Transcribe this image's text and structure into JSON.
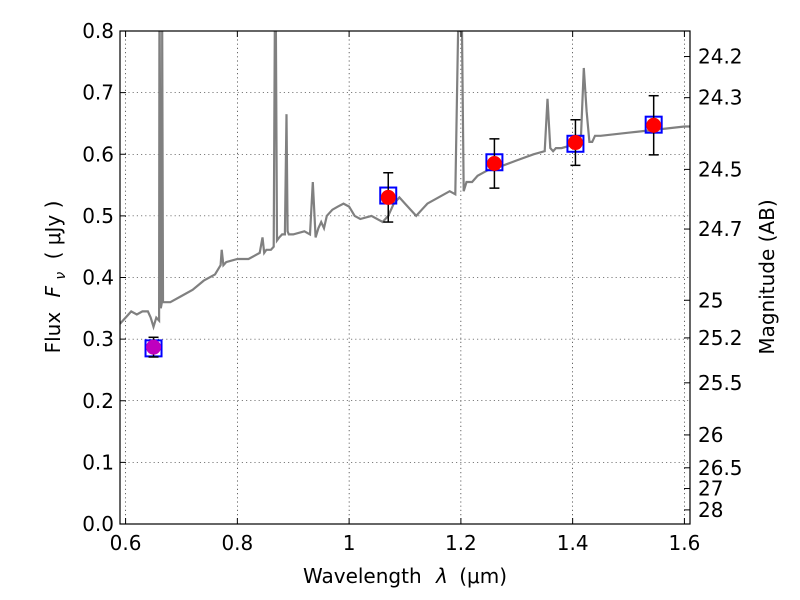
{
  "chart_data": {
    "type": "scatter",
    "xlabel": "Wavelength",
    "xlabel_symbol": "λ",
    "xlabel_unit": "(μm)",
    "ylabel": "Flux",
    "ylabel_symbol": "F",
    "ylabel_subscript": "ν",
    "ylabel_unit": "( μJy )",
    "y2label": "Magnitude (AB)",
    "xlim": [
      0.59,
      1.61
    ],
    "ylim": [
      0.0,
      0.8
    ],
    "xticks": [
      0.6,
      0.8,
      1.0,
      1.2,
      1.4,
      1.6
    ],
    "xtick_labels": [
      "0.6",
      "0.8",
      "1",
      "1.2",
      "1.4",
      "1.6"
    ],
    "yticks": [
      0.0,
      0.1,
      0.2,
      0.3,
      0.4,
      0.5,
      0.6,
      0.7,
      0.8
    ],
    "ytick_labels": [
      "0.0",
      "0.1",
      "0.2",
      "0.3",
      "0.4",
      "0.5",
      "0.6",
      "0.7",
      "0.8"
    ],
    "y2ticks": [
      "24.2",
      "24.3",
      "24.5",
      "24.7",
      "25",
      "25.2",
      "25.5",
      "26",
      "26.5",
      "27",
      "28"
    ],
    "grid": true,
    "colors": {
      "spectrum": "#808080",
      "model_box": "#0000ff",
      "observed": "#ff0000",
      "observed_first": "#bf00bf",
      "errorbar": "#000000"
    },
    "spectrum": {
      "x": [
        0.59,
        0.6,
        0.61,
        0.62,
        0.63,
        0.64,
        0.645,
        0.65,
        0.655,
        0.66,
        0.6605,
        0.661,
        0.663,
        0.665,
        0.6655,
        0.667,
        0.68,
        0.7,
        0.72,
        0.74,
        0.76,
        0.77,
        0.772,
        0.775,
        0.78,
        0.8,
        0.82,
        0.84,
        0.845,
        0.848,
        0.852,
        0.86,
        0.865,
        0.867,
        0.869,
        0.871,
        0.875,
        0.88,
        0.885,
        0.888,
        0.89,
        0.892,
        0.895,
        0.9,
        0.92,
        0.93,
        0.935,
        0.94,
        0.945,
        0.95,
        0.955,
        0.96,
        0.97,
        0.98,
        0.99,
        1.0,
        1.01,
        1.02,
        1.04,
        1.06,
        1.07,
        1.08,
        1.09,
        1.1,
        1.12,
        1.13,
        1.14,
        1.16,
        1.18,
        1.19,
        1.195,
        1.198,
        1.2,
        1.202,
        1.205,
        1.21,
        1.22,
        1.23,
        1.24,
        1.25,
        1.26,
        1.27,
        1.3,
        1.33,
        1.35,
        1.355,
        1.36,
        1.365,
        1.37,
        1.38,
        1.4,
        1.41,
        1.415,
        1.42,
        1.425,
        1.43,
        1.435,
        1.44,
        1.45,
        1.5,
        1.55,
        1.6,
        1.61
      ],
      "y": [
        0.325,
        0.335,
        0.345,
        0.34,
        0.345,
        0.345,
        0.335,
        0.32,
        0.335,
        0.33,
        0.8,
        0.8,
        0.35,
        0.36,
        0.8,
        0.36,
        0.36,
        0.37,
        0.38,
        0.395,
        0.405,
        0.42,
        0.445,
        0.42,
        0.425,
        0.43,
        0.43,
        0.44,
        0.465,
        0.44,
        0.445,
        0.445,
        0.45,
        0.8,
        0.8,
        0.46,
        0.465,
        0.47,
        0.47,
        0.665,
        0.475,
        0.47,
        0.47,
        0.47,
        0.475,
        0.47,
        0.555,
        0.465,
        0.48,
        0.49,
        0.48,
        0.5,
        0.51,
        0.515,
        0.52,
        0.515,
        0.5,
        0.495,
        0.5,
        0.49,
        0.5,
        0.52,
        0.53,
        0.52,
        0.5,
        0.51,
        0.52,
        0.53,
        0.54,
        0.535,
        0.8,
        0.8,
        0.8,
        0.8,
        0.54,
        0.555,
        0.555,
        0.565,
        0.57,
        0.575,
        0.58,
        0.58,
        0.59,
        0.6,
        0.605,
        0.69,
        0.61,
        0.605,
        0.61,
        0.61,
        0.615,
        0.62,
        0.63,
        0.74,
        0.67,
        0.62,
        0.62,
        0.63,
        0.63,
        0.635,
        0.64,
        0.645,
        0.645
      ]
    },
    "photometry": {
      "x": [
        0.65,
        1.07,
        1.26,
        1.405,
        1.545
      ],
      "model": [
        0.285,
        0.533,
        0.587,
        0.617,
        0.648
      ],
      "observed": [
        0.287,
        0.53,
        0.585,
        0.619,
        0.647
      ],
      "err": [
        0.016,
        0.04,
        0.04,
        0.037,
        0.048
      ]
    }
  }
}
